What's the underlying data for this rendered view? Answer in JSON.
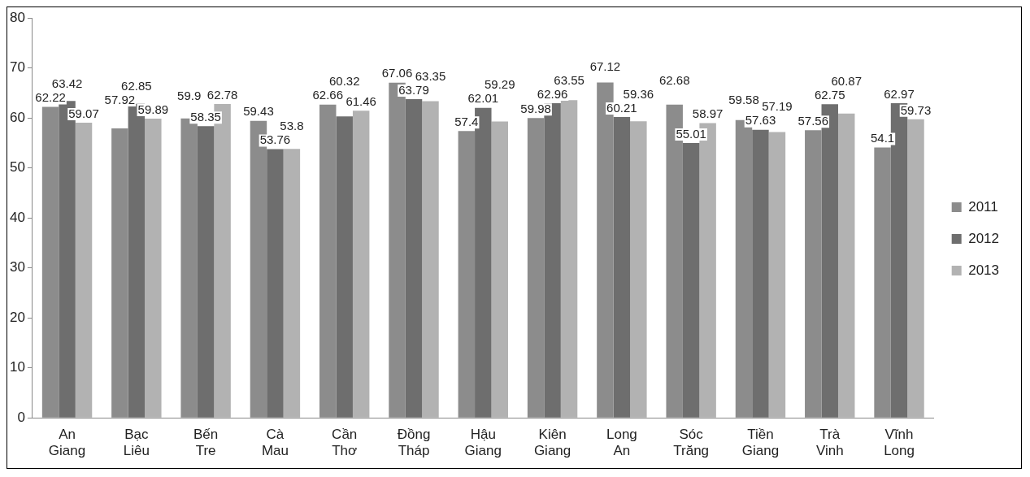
{
  "chart_data": {
    "type": "bar",
    "categories": [
      "An Giang",
      "Bạc Liêu",
      "Bến Tre",
      "Cà Mau",
      "Cần Thơ",
      "Đồng Tháp",
      "Hậu Giang",
      "Kiên Giang",
      "Long An",
      "Sóc Trăng",
      "Tiền Giang",
      "Trà Vinh",
      "Vĩnh Long"
    ],
    "series": [
      {
        "name": "2011",
        "color": "#8c8c8c",
        "values": [
          62.22,
          57.92,
          59.9,
          59.43,
          62.66,
          67.06,
          57.4,
          59.98,
          67.12,
          62.68,
          59.58,
          57.56,
          54.1
        ]
      },
      {
        "name": "2012",
        "color": "#6e6e6e",
        "values": [
          63.42,
          62.85,
          58.35,
          53.76,
          60.32,
          63.79,
          62.01,
          62.96,
          60.21,
          55.01,
          57.63,
          62.75,
          62.97
        ]
      },
      {
        "name": "2013",
        "color": "#b2b2b2",
        "values": [
          59.07,
          59.89,
          62.78,
          53.8,
          61.46,
          63.35,
          59.29,
          63.55,
          59.36,
          58.97,
          57.19,
          60.87,
          59.73
        ]
      }
    ],
    "ylim": [
      0,
      80
    ],
    "yticks": [
      0,
      10,
      20,
      30,
      40,
      50,
      60,
      70,
      80
    ],
    "grid": false,
    "legend": "right",
    "data_labels": true
  }
}
